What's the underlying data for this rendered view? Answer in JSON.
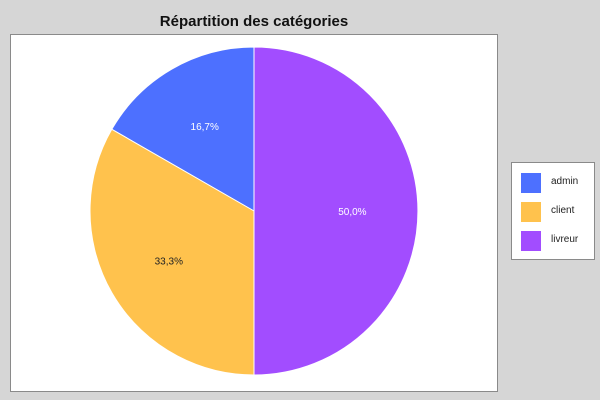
{
  "chart_data": {
    "type": "pie",
    "title": "Répartition des catégories",
    "categories": [
      "admin",
      "client",
      "livreur"
    ],
    "values": [
      16.7,
      33.3,
      50.0
    ],
    "value_labels": [
      "16,7%",
      "33,3%",
      "50,0%"
    ],
    "colors": [
      "#4d70ff",
      "#ffc24d",
      "#a24dff"
    ],
    "label_colors": [
      "#ffffff",
      "#222222",
      "#ffffff"
    ],
    "start_angle": "12 o'clock",
    "direction": "counter-clockwise",
    "legend_position": "right"
  }
}
